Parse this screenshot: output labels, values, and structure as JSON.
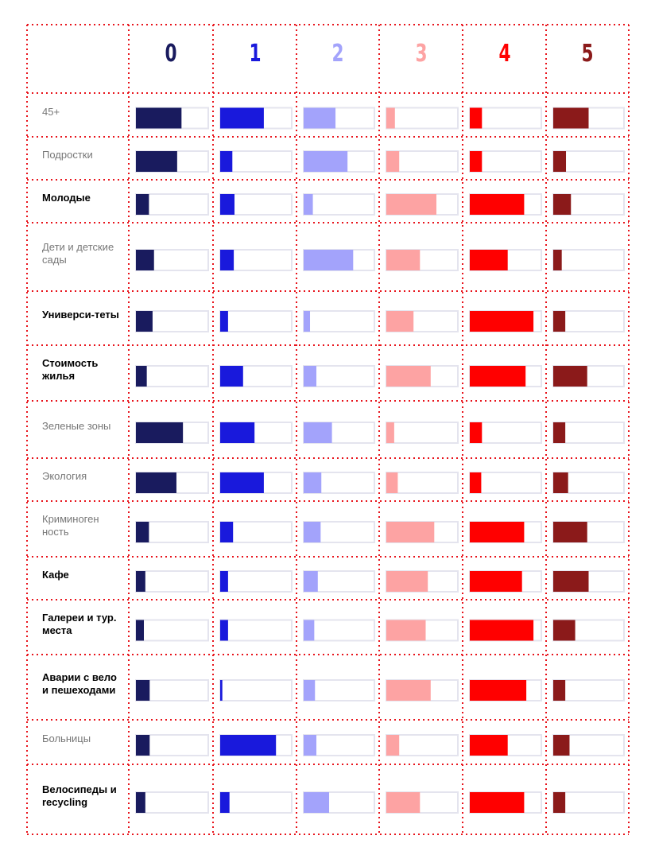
{
  "chart_data": {
    "type": "table",
    "unit": "fraction of bar track filled",
    "series": [
      {
        "name": "0",
        "color": "#191b5e"
      },
      {
        "name": "1",
        "color": "#1919dc"
      },
      {
        "name": "2",
        "color": "#a3a3fb"
      },
      {
        "name": "3",
        "color": "#fda3a3"
      },
      {
        "name": "4",
        "color": "#ff0000"
      },
      {
        "name": "5",
        "color": "#8b1a1a"
      }
    ],
    "rows": [
      {
        "label": "45+",
        "bold": false,
        "values": [
          0.63,
          0.61,
          0.45,
          0.12,
          0.17,
          0.5
        ]
      },
      {
        "label": "Подростки",
        "bold": false,
        "values": [
          0.57,
          0.17,
          0.62,
          0.18,
          0.17,
          0.18
        ]
      },
      {
        "label": "Молодые",
        "bold": true,
        "values": [
          0.18,
          0.2,
          0.13,
          0.7,
          0.76,
          0.25
        ]
      },
      {
        "label": "Дети и детские сады",
        "bold": false,
        "values": [
          0.25,
          0.19,
          0.7,
          0.47,
          0.53,
          0.12
        ]
      },
      {
        "label": "Универси-теты",
        "bold": true,
        "values": [
          0.23,
          0.11,
          0.09,
          0.38,
          0.89,
          0.17
        ]
      },
      {
        "label": "Стоимость жилья",
        "bold": true,
        "values": [
          0.15,
          0.32,
          0.18,
          0.62,
          0.78,
          0.48
        ]
      },
      {
        "label": "Зеленые зоны",
        "bold": false,
        "values": [
          0.65,
          0.48,
          0.4,
          0.11,
          0.17,
          0.17
        ]
      },
      {
        "label": "Экология",
        "bold": false,
        "values": [
          0.56,
          0.61,
          0.25,
          0.16,
          0.16,
          0.21
        ]
      },
      {
        "label": "Криминоген ность",
        "bold": false,
        "values": [
          0.18,
          0.18,
          0.24,
          0.67,
          0.76,
          0.48
        ]
      },
      {
        "label": "Кафе",
        "bold": true,
        "values": [
          0.13,
          0.11,
          0.2,
          0.58,
          0.73,
          0.5
        ]
      },
      {
        "label": "Галереи и тур. места",
        "bold": true,
        "values": [
          0.11,
          0.11,
          0.15,
          0.55,
          0.89,
          0.31
        ]
      },
      {
        "label": "Аварии с вело и пешеходами",
        "bold": true,
        "values": [
          0.19,
          0.03,
          0.16,
          0.62,
          0.79,
          0.17
        ]
      },
      {
        "label": "Больницы",
        "bold": false,
        "values": [
          0.19,
          0.78,
          0.18,
          0.18,
          0.53,
          0.23
        ]
      },
      {
        "label": "Велосипеды и recycling",
        "bold": true,
        "values": [
          0.13,
          0.13,
          0.36,
          0.47,
          0.76,
          0.17
        ]
      }
    ]
  }
}
